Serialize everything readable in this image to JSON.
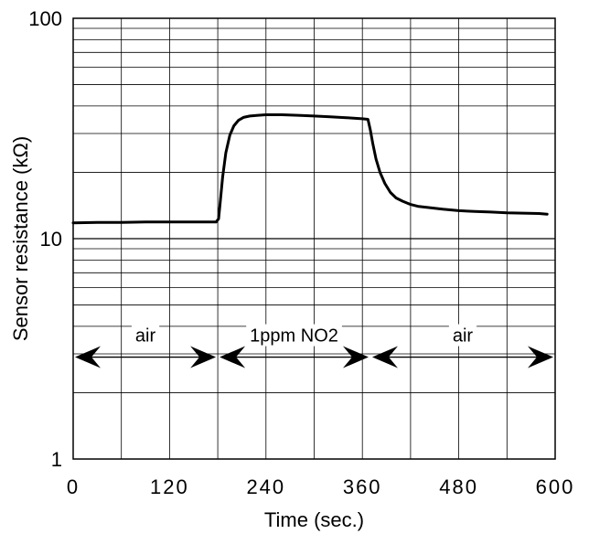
{
  "chart_data": {
    "type": "line",
    "title": "",
    "xlabel": "Time  (sec.)",
    "ylabel": "Sensor  resistance  (kΩ)",
    "xlim": [
      0,
      600
    ],
    "ylim": [
      1,
      100
    ],
    "yscale": "log",
    "grid": true,
    "x_ticks": [
      0,
      120,
      240,
      360,
      480,
      600
    ],
    "x_tick_labels": [
      "0",
      "120",
      "240",
      "360",
      "480",
      "600"
    ],
    "y_ticks": [
      1,
      10,
      100
    ],
    "y_tick_labels": [
      "1",
      "10",
      "100"
    ],
    "series": [
      {
        "x": [
          0,
          30,
          60,
          90,
          120,
          150,
          178,
          181,
          183,
          186,
          190,
          195,
          200,
          206,
          212,
          220,
          230,
          240,
          260,
          280,
          300,
          320,
          340,
          360,
          367,
          370,
          373,
          377,
          382,
          388,
          395,
          402,
          410,
          420,
          430,
          445,
          460,
          480,
          500,
          520,
          540,
          560,
          580,
          590
        ],
        "values": [
          11.8,
          11.85,
          11.85,
          11.9,
          11.9,
          11.9,
          11.9,
          12.3,
          14.5,
          19.0,
          24.5,
          29.5,
          32.5,
          34.5,
          35.5,
          36.0,
          36.3,
          36.5,
          36.5,
          36.3,
          36.0,
          35.7,
          35.4,
          35.0,
          34.8,
          31.0,
          27.0,
          23.0,
          20.0,
          17.8,
          16.2,
          15.3,
          14.8,
          14.3,
          14.0,
          13.8,
          13.6,
          13.4,
          13.3,
          13.2,
          13.1,
          13.05,
          13.0,
          12.9
        ]
      }
    ],
    "annotations": [
      {
        "label": "air",
        "x_start": 0,
        "x_end": 180,
        "y": 2.9
      },
      {
        "label": "1ppm  NO2",
        "x_start": 180,
        "x_end": 370,
        "y": 2.9
      },
      {
        "label": "air",
        "x_start": 370,
        "x_end": 600,
        "y": 2.9
      }
    ]
  }
}
